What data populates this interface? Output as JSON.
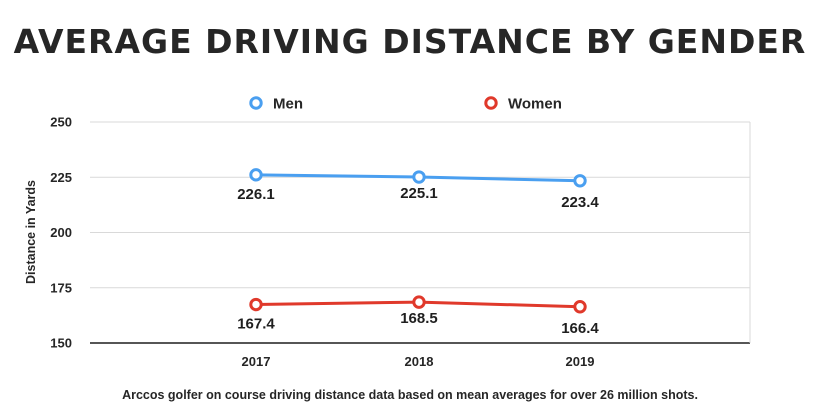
{
  "chart_data": {
    "type": "line",
    "title": "AVERAGE DRIVING DISTANCE BY GENDER",
    "caption": "Arccos golfer on course driving distance data based on mean averages for over 26 million shots.",
    "xlabel": "",
    "ylabel": "Distance in Yards",
    "categories": [
      "2017",
      "2018",
      "2019"
    ],
    "ylim": [
      150,
      250
    ],
    "yticks": [
      150,
      175,
      200,
      225,
      250
    ],
    "grid": true,
    "legend_position": "top",
    "series": [
      {
        "name": "Men",
        "values": [
          226.1,
          225.1,
          223.4
        ],
        "labels": [
          "226.1",
          "225.1",
          "223.4"
        ],
        "color": "#4a9ff0"
      },
      {
        "name": "Women",
        "values": [
          167.4,
          168.5,
          166.4
        ],
        "labels": [
          "167.4",
          "168.5",
          "166.4"
        ],
        "color": "#e0392b"
      }
    ]
  }
}
